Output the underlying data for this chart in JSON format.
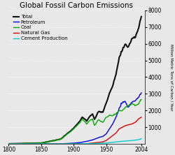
{
  "title": "Global Fossil Carbon Emissions",
  "ylabel": "Million Metric Tons of Carbon / Year",
  "xlim": [
    1800,
    2010
  ],
  "ylim": [
    0,
    8000
  ],
  "yticks": [
    1000,
    2000,
    3000,
    4000,
    5000,
    6000,
    7000,
    8000
  ],
  "xticks": [
    1800,
    1850,
    1900,
    1950,
    2004
  ],
  "background_color": "#e8e8e8",
  "grid_color": "#ffffff",
  "series": {
    "Total": {
      "color": "#111111",
      "lw": 1.5
    },
    "Petroleum": {
      "color": "#0000ee",
      "lw": 1.0
    },
    "Coal": {
      "color": "#00aa00",
      "lw": 1.0
    },
    "Natural Gas": {
      "color": "#dd0000",
      "lw": 1.0
    },
    "Cement Production": {
      "color": "#00cccc",
      "lw": 1.0
    }
  },
  "legend_fontsize": 5.0,
  "title_fontsize": 7.5,
  "tick_fontsize": 5.5
}
